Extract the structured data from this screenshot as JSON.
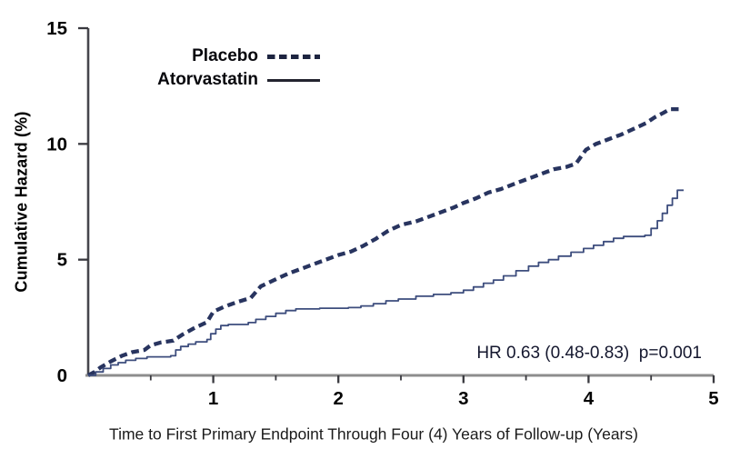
{
  "chart_data": {
    "type": "line",
    "title": "",
    "xlabel": "Time to First Primary Endpoint Through Four (4) Years of Follow-up (Years)",
    "ylabel": "Cumulative Hazard (%)",
    "xlim": [
      0,
      5
    ],
    "ylim": [
      0,
      15
    ],
    "x_ticks_major": [
      1,
      2,
      3,
      4,
      5
    ],
    "x_ticks_minor": [
      0.5,
      1.5,
      2.5,
      3.5,
      4.5
    ],
    "y_ticks": [
      0,
      5,
      10,
      15
    ],
    "grid": false,
    "annotation": "HR 0.63 (0.48-0.83)  p=0.001",
    "legend": {
      "position": "top-inside",
      "items": [
        {
          "label": "Placebo",
          "line_style": "dashed"
        },
        {
          "label": "Atorvastatin",
          "line_style": "solid"
        }
      ]
    },
    "colors": {
      "placebo_line": "#28345f",
      "atorvastatin_line": "#3d4d7d",
      "x_axis": "#8d8d8d",
      "y_axis": "#46464c",
      "tick": "#38383e",
      "tick_label": "#040404"
    },
    "series": [
      {
        "name": "Placebo",
        "line_style": "dashed",
        "color": "#28345f",
        "step": false,
        "points": [
          [
            0,
            0
          ],
          [
            0.05,
            0.15
          ],
          [
            0.1,
            0.35
          ],
          [
            0.18,
            0.6
          ],
          [
            0.27,
            0.85
          ],
          [
            0.35,
            1.0
          ],
          [
            0.45,
            1.1
          ],
          [
            0.5,
            1.3
          ],
          [
            0.58,
            1.42
          ],
          [
            0.68,
            1.5
          ],
          [
            0.75,
            1.75
          ],
          [
            0.85,
            2.05
          ],
          [
            0.95,
            2.3
          ],
          [
            1.0,
            2.75
          ],
          [
            1.08,
            2.95
          ],
          [
            1.18,
            3.15
          ],
          [
            1.3,
            3.35
          ],
          [
            1.38,
            3.85
          ],
          [
            1.48,
            4.1
          ],
          [
            1.6,
            4.4
          ],
          [
            1.7,
            4.6
          ],
          [
            1.8,
            4.8
          ],
          [
            1.9,
            5.0
          ],
          [
            2.0,
            5.2
          ],
          [
            2.1,
            5.35
          ],
          [
            2.2,
            5.6
          ],
          [
            2.3,
            5.9
          ],
          [
            2.4,
            6.25
          ],
          [
            2.5,
            6.5
          ],
          [
            2.62,
            6.65
          ],
          [
            2.72,
            6.85
          ],
          [
            2.82,
            7.05
          ],
          [
            2.92,
            7.25
          ],
          [
            3.0,
            7.45
          ],
          [
            3.1,
            7.65
          ],
          [
            3.2,
            7.9
          ],
          [
            3.3,
            8.05
          ],
          [
            3.42,
            8.3
          ],
          [
            3.52,
            8.5
          ],
          [
            3.62,
            8.7
          ],
          [
            3.72,
            8.9
          ],
          [
            3.82,
            9.0
          ],
          [
            3.9,
            9.15
          ],
          [
            3.98,
            9.75
          ],
          [
            4.06,
            10.0
          ],
          [
            4.16,
            10.2
          ],
          [
            4.26,
            10.4
          ],
          [
            4.36,
            10.65
          ],
          [
            4.46,
            10.9
          ],
          [
            4.53,
            11.15
          ],
          [
            4.6,
            11.35
          ],
          [
            4.65,
            11.5
          ],
          [
            4.72,
            11.5
          ]
        ]
      },
      {
        "name": "Atorvastatin",
        "line_style": "solid",
        "color": "#3d4d7d",
        "step": true,
        "points": [
          [
            0,
            0
          ],
          [
            0.06,
            0.15
          ],
          [
            0.12,
            0.3
          ],
          [
            0.18,
            0.45
          ],
          [
            0.24,
            0.55
          ],
          [
            0.3,
            0.65
          ],
          [
            0.38,
            0.73
          ],
          [
            0.47,
            0.8
          ],
          [
            0.66,
            0.85
          ],
          [
            0.7,
            1.1
          ],
          [
            0.74,
            1.25
          ],
          [
            0.8,
            1.35
          ],
          [
            0.86,
            1.45
          ],
          [
            0.95,
            1.55
          ],
          [
            0.98,
            1.8
          ],
          [
            1.02,
            2.0
          ],
          [
            1.06,
            2.15
          ],
          [
            1.12,
            2.2
          ],
          [
            1.28,
            2.28
          ],
          [
            1.34,
            2.42
          ],
          [
            1.42,
            2.55
          ],
          [
            1.5,
            2.68
          ],
          [
            1.58,
            2.8
          ],
          [
            1.66,
            2.87
          ],
          [
            1.85,
            2.9
          ],
          [
            2.08,
            2.93
          ],
          [
            2.18,
            3.0
          ],
          [
            2.28,
            3.1
          ],
          [
            2.38,
            3.22
          ],
          [
            2.48,
            3.3
          ],
          [
            2.62,
            3.42
          ],
          [
            2.76,
            3.5
          ],
          [
            2.9,
            3.57
          ],
          [
            3.0,
            3.68
          ],
          [
            3.08,
            3.82
          ],
          [
            3.16,
            3.98
          ],
          [
            3.24,
            4.12
          ],
          [
            3.32,
            4.3
          ],
          [
            3.42,
            4.52
          ],
          [
            3.52,
            4.72
          ],
          [
            3.6,
            4.88
          ],
          [
            3.68,
            5.0
          ],
          [
            3.76,
            5.15
          ],
          [
            3.86,
            5.32
          ],
          [
            3.96,
            5.48
          ],
          [
            4.04,
            5.62
          ],
          [
            4.12,
            5.78
          ],
          [
            4.2,
            5.92
          ],
          [
            4.28,
            6.0
          ],
          [
            4.45,
            6.05
          ],
          [
            4.5,
            6.35
          ],
          [
            4.55,
            6.68
          ],
          [
            4.59,
            7.0
          ],
          [
            4.63,
            7.35
          ],
          [
            4.67,
            7.65
          ],
          [
            4.71,
            8.0
          ],
          [
            4.76,
            8.0
          ]
        ]
      }
    ]
  }
}
